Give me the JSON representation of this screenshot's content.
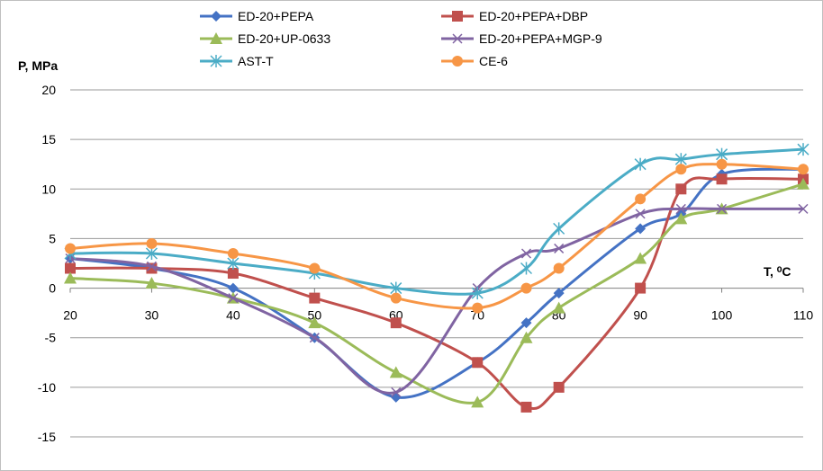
{
  "chart_data": {
    "type": "line",
    "title": "",
    "xlabel": "T, ⁰C",
    "ylabel": "P, MPa",
    "xlim": [
      20,
      110
    ],
    "ylim": [
      -15,
      20
    ],
    "x_ticks": [
      20,
      30,
      40,
      50,
      60,
      70,
      80,
      90,
      100,
      110
    ],
    "y_ticks": [
      20,
      15,
      10,
      5,
      0,
      -5,
      -10,
      -15
    ],
    "grid": "horizontal",
    "legend": "top",
    "series": [
      {
        "name": "ED-20+PEPA",
        "color": "#4472C4",
        "marker": "diamond",
        "points": [
          [
            20,
            3
          ],
          [
            30,
            2
          ],
          [
            40,
            0
          ],
          [
            50,
            -5
          ],
          [
            60,
            -11
          ],
          [
            70,
            -7.5
          ],
          [
            76,
            -3.5
          ],
          [
            80,
            -0.5
          ],
          [
            90,
            6
          ],
          [
            95,
            7.5
          ],
          [
            100,
            11.5
          ],
          [
            110,
            12
          ]
        ]
      },
      {
        "name": "ED-20+PEPA+DBP",
        "color": "#C0504D",
        "marker": "square",
        "points": [
          [
            20,
            2
          ],
          [
            30,
            2
          ],
          [
            40,
            1.5
          ],
          [
            50,
            -1
          ],
          [
            60,
            -3.5
          ],
          [
            70,
            -7.5
          ],
          [
            76,
            -12
          ],
          [
            80,
            -10
          ],
          [
            90,
            0
          ],
          [
            95,
            10
          ],
          [
            100,
            11
          ],
          [
            110,
            11
          ]
        ]
      },
      {
        "name": "ED-20+UP-0633",
        "color": "#9BBB59",
        "marker": "triangle",
        "points": [
          [
            20,
            1
          ],
          [
            30,
            0.5
          ],
          [
            40,
            -1
          ],
          [
            50,
            -3.5
          ],
          [
            60,
            -8.5
          ],
          [
            70,
            -11.5
          ],
          [
            76,
            -5
          ],
          [
            80,
            -2
          ],
          [
            90,
            3
          ],
          [
            95,
            7
          ],
          [
            100,
            8
          ],
          [
            110,
            10.5
          ]
        ]
      },
      {
        "name": "ED-20+PEPA+MGP-9",
        "color": "#8064A2",
        "marker": "x",
        "points": [
          [
            20,
            3
          ],
          [
            30,
            2.2
          ],
          [
            40,
            -1
          ],
          [
            50,
            -5
          ],
          [
            60,
            -10.5
          ],
          [
            70,
            0
          ],
          [
            76,
            3.5
          ],
          [
            80,
            4
          ],
          [
            90,
            7.5
          ],
          [
            95,
            8
          ],
          [
            100,
            8
          ],
          [
            110,
            8
          ]
        ]
      },
      {
        "name": "AST-T",
        "color": "#4BACC6",
        "marker": "star",
        "points": [
          [
            20,
            3.5
          ],
          [
            30,
            3.5
          ],
          [
            40,
            2.5
          ],
          [
            50,
            1.5
          ],
          [
            60,
            0
          ],
          [
            70,
            -0.5
          ],
          [
            76,
            2
          ],
          [
            80,
            6
          ],
          [
            90,
            12.5
          ],
          [
            95,
            13
          ],
          [
            100,
            13.5
          ],
          [
            110,
            14
          ]
        ]
      },
      {
        "name": "CE-6",
        "color": "#F79646",
        "marker": "circle",
        "points": [
          [
            20,
            4
          ],
          [
            30,
            4.5
          ],
          [
            40,
            3.5
          ],
          [
            50,
            2
          ],
          [
            60,
            -1
          ],
          [
            70,
            -2
          ],
          [
            76,
            0
          ],
          [
            80,
            2
          ],
          [
            90,
            9
          ],
          [
            95,
            12
          ],
          [
            100,
            12.5
          ],
          [
            110,
            12
          ]
        ]
      }
    ]
  }
}
